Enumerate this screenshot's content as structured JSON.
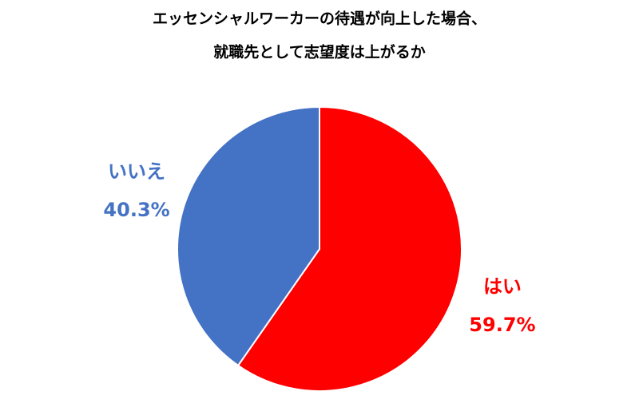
{
  "chart_data": {
    "type": "pie",
    "title": [
      "エッセンシャルワーカーの待遇が向上した場合、",
      "就職先として志望度は上がるか"
    ],
    "categories": [
      "はい",
      "いいえ"
    ],
    "values": [
      59.7,
      40.3
    ],
    "value_labels": [
      "59.7%",
      "40.3%"
    ],
    "colors": [
      "#ff0000",
      "#4472c4"
    ]
  }
}
